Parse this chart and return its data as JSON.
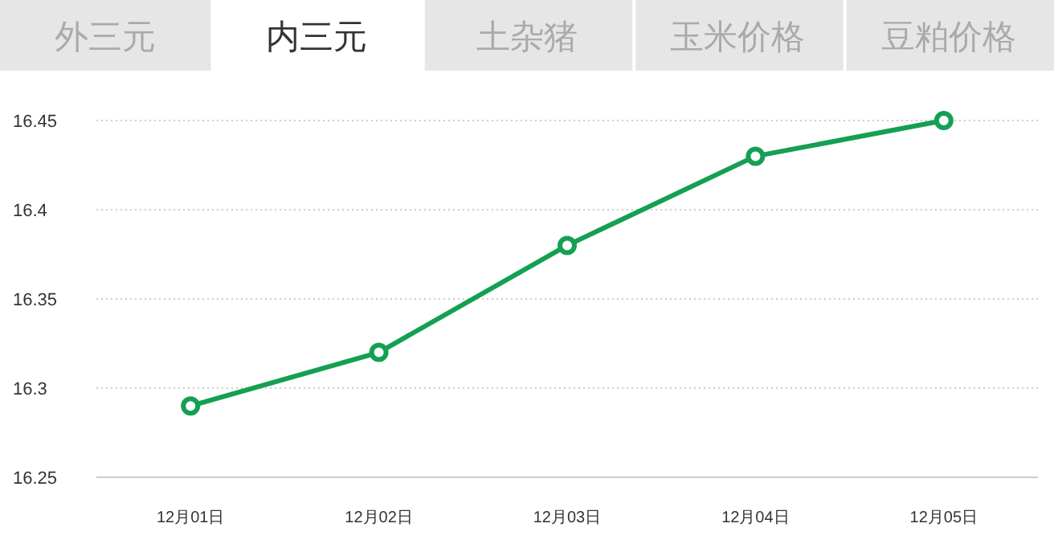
{
  "chart_data": {
    "type": "line",
    "annotations": [
      "外三元",
      "内三元",
      "土杂猪",
      "玉米价格",
      "豆粕价格"
    ],
    "categories": [
      "12月01日",
      "12月02日",
      "12月03日",
      "12月04日",
      "12月05日"
    ],
    "series": [
      {
        "color": "#14a052",
        "values": [
          16.29,
          16.32,
          16.38,
          16.43,
          16.45
        ]
      }
    ],
    "ylim": [
      16.25,
      16.45
    ],
    "yticks": [
      16.25,
      16.3,
      16.35,
      16.4,
      16.45
    ],
    "grid": "y",
    "marker": "circle"
  }
}
